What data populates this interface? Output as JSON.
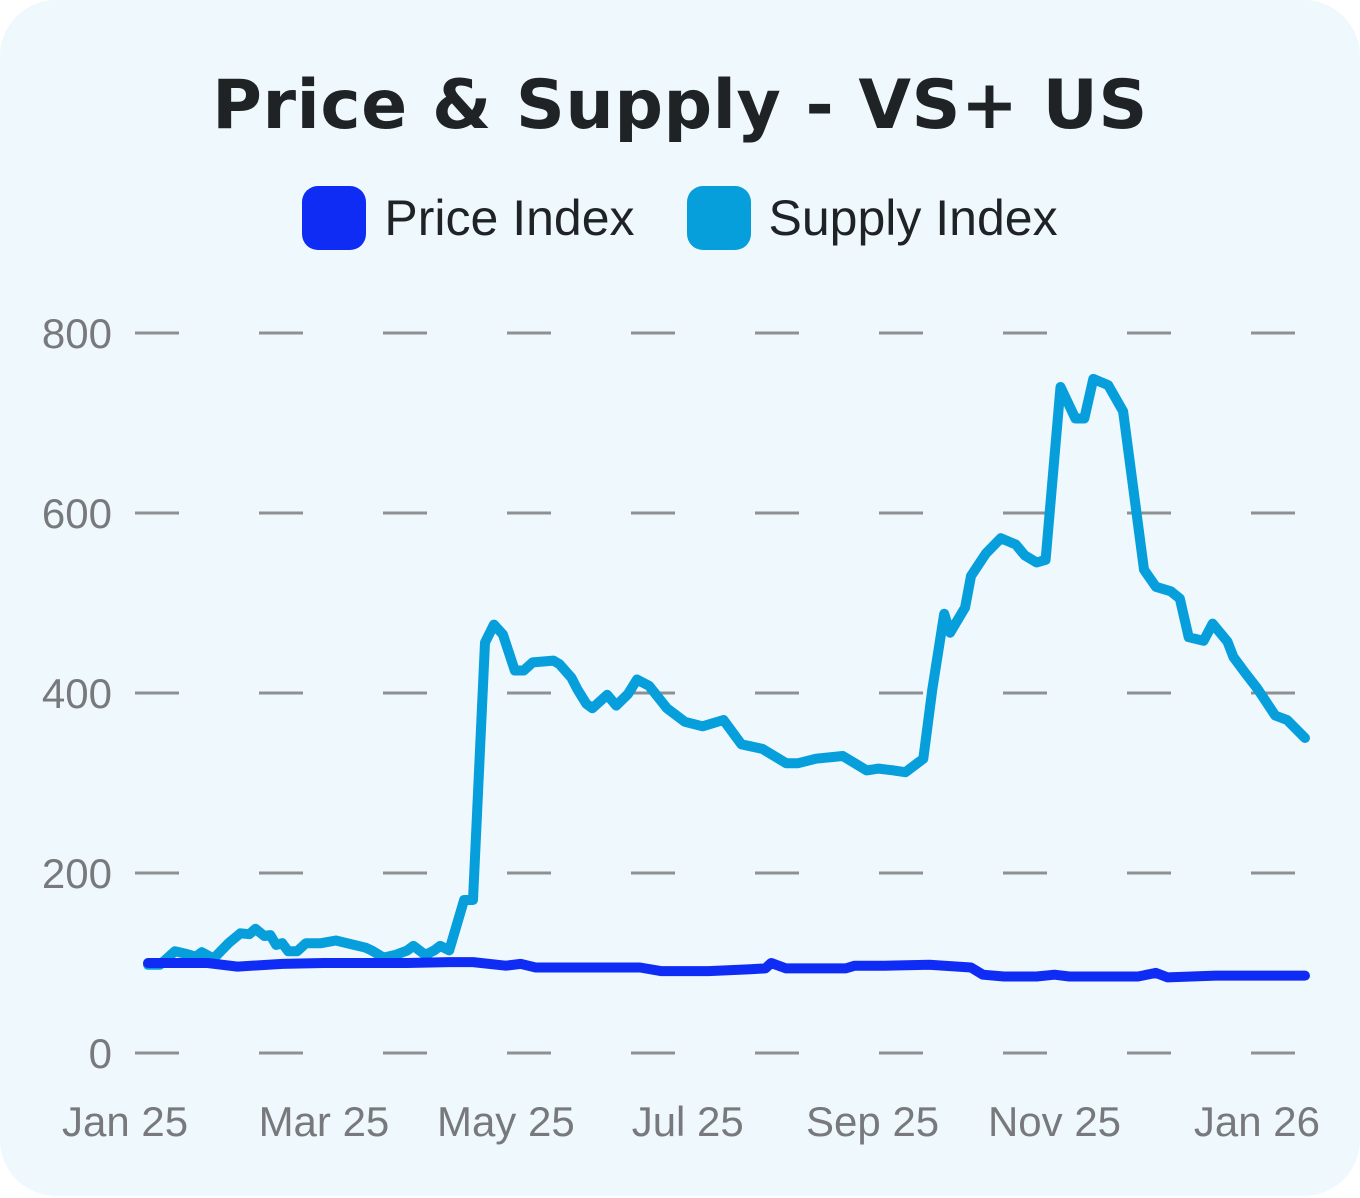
{
  "chart_data": {
    "type": "line",
    "title": "Price & Supply - VS+ US",
    "xlabel": "",
    "ylabel": "",
    "ylim": [
      0,
      800
    ],
    "yticks": [
      0,
      200,
      400,
      600,
      800
    ],
    "xlim": [
      "2025-01-01",
      "2026-01-24"
    ],
    "xticks": [
      {
        "date": "2025-01-01",
        "label": "Jan 25"
      },
      {
        "date": "2025-03-01",
        "label": "Mar 25"
      },
      {
        "date": "2025-05-01",
        "label": "May 25"
      },
      {
        "date": "2025-07-01",
        "label": "Jul 25"
      },
      {
        "date": "2025-09-01",
        "label": "Sep 25"
      },
      {
        "date": "2025-11-01",
        "label": "Nov 25"
      },
      {
        "date": "2026-01-01",
        "label": "Jan 26"
      }
    ],
    "grid": true,
    "legend_position": "top",
    "series": [
      {
        "name": "Price Index",
        "color": "#0f2cf5",
        "points": [
          [
            "2025-01-01",
            100
          ],
          [
            "2025-01-11",
            100
          ],
          [
            "2025-01-21",
            100
          ],
          [
            "2025-01-31",
            96
          ],
          [
            "2025-02-15",
            99
          ],
          [
            "2025-03-01",
            100
          ],
          [
            "2025-03-15",
            100
          ],
          [
            "2025-03-29",
            100
          ],
          [
            "2025-04-12",
            101
          ],
          [
            "2025-04-20",
            101
          ],
          [
            "2025-05-01",
            97
          ],
          [
            "2025-05-06",
            99
          ],
          [
            "2025-05-11",
            95
          ],
          [
            "2025-05-31",
            95
          ],
          [
            "2025-06-15",
            95
          ],
          [
            "2025-06-22",
            91
          ],
          [
            "2025-07-08",
            91
          ],
          [
            "2025-07-22",
            93
          ],
          [
            "2025-07-27",
            94
          ],
          [
            "2025-07-29",
            100
          ],
          [
            "2025-08-03",
            94
          ],
          [
            "2025-08-14",
            94
          ],
          [
            "2025-08-23",
            94
          ],
          [
            "2025-08-26",
            97
          ],
          [
            "2025-09-05",
            97
          ],
          [
            "2025-09-20",
            98
          ],
          [
            "2025-10-04",
            95
          ],
          [
            "2025-10-08",
            87
          ],
          [
            "2025-10-15",
            85
          ],
          [
            "2025-10-26",
            85
          ],
          [
            "2025-11-01",
            87
          ],
          [
            "2025-11-06",
            85
          ],
          [
            "2025-11-29",
            85
          ],
          [
            "2025-12-05",
            89
          ],
          [
            "2025-12-09",
            84
          ],
          [
            "2025-12-25",
            86
          ],
          [
            "2026-01-24",
            86
          ]
        ]
      },
      {
        "name": "Supply Index",
        "color": "#069fdc",
        "points": [
          [
            "2025-01-01",
            98
          ],
          [
            "2025-01-05",
            98
          ],
          [
            "2025-01-10",
            113
          ],
          [
            "2025-01-14",
            110
          ],
          [
            "2025-01-17",
            107
          ],
          [
            "2025-01-19",
            112
          ],
          [
            "2025-01-23",
            105
          ],
          [
            "2025-01-28",
            122
          ],
          [
            "2025-02-01",
            133
          ],
          [
            "2025-02-04",
            132
          ],
          [
            "2025-02-06",
            138
          ],
          [
            "2025-02-09",
            130
          ],
          [
            "2025-02-11",
            131
          ],
          [
            "2025-02-13",
            120
          ],
          [
            "2025-02-15",
            122
          ],
          [
            "2025-02-17",
            113
          ],
          [
            "2025-02-20",
            113
          ],
          [
            "2025-02-23",
            122
          ],
          [
            "2025-02-28",
            122
          ],
          [
            "2025-03-05",
            125
          ],
          [
            "2025-03-10",
            121
          ],
          [
            "2025-03-15",
            117
          ],
          [
            "2025-03-17",
            114
          ],
          [
            "2025-03-21",
            106
          ],
          [
            "2025-03-25",
            109
          ],
          [
            "2025-03-29",
            114
          ],
          [
            "2025-03-31",
            119
          ],
          [
            "2025-04-04",
            109
          ],
          [
            "2025-04-07",
            114
          ],
          [
            "2025-04-09",
            119
          ],
          [
            "2025-04-12",
            114
          ],
          [
            "2025-04-17",
            170
          ],
          [
            "2025-04-20",
            170
          ],
          [
            "2025-04-24",
            456
          ],
          [
            "2025-04-27",
            476
          ],
          [
            "2025-04-30",
            465
          ],
          [
            "2025-05-04",
            425
          ],
          [
            "2025-05-07",
            425
          ],
          [
            "2025-05-10",
            434
          ],
          [
            "2025-05-17",
            436
          ],
          [
            "2025-05-19",
            432
          ],
          [
            "2025-05-23",
            417
          ],
          [
            "2025-05-25",
            404
          ],
          [
            "2025-05-28",
            388
          ],
          [
            "2025-05-30",
            383
          ],
          [
            "2025-06-04",
            398
          ],
          [
            "2025-06-07",
            386
          ],
          [
            "2025-06-11",
            399
          ],
          [
            "2025-06-14",
            415
          ],
          [
            "2025-06-18",
            408
          ],
          [
            "2025-06-24",
            383
          ],
          [
            "2025-06-30",
            368
          ],
          [
            "2025-07-06",
            363
          ],
          [
            "2025-07-13",
            370
          ],
          [
            "2025-07-19",
            343
          ],
          [
            "2025-07-26",
            338
          ],
          [
            "2025-08-03",
            322
          ],
          [
            "2025-08-07",
            322
          ],
          [
            "2025-08-13",
            327
          ],
          [
            "2025-08-22",
            330
          ],
          [
            "2025-08-26",
            322
          ],
          [
            "2025-08-30",
            314
          ],
          [
            "2025-09-03",
            316
          ],
          [
            "2025-09-08",
            314
          ],
          [
            "2025-09-12",
            312
          ],
          [
            "2025-09-18",
            327
          ],
          [
            "2025-09-21",
            404
          ],
          [
            "2025-09-25",
            488
          ],
          [
            "2025-09-27",
            467
          ],
          [
            "2025-10-02",
            495
          ],
          [
            "2025-10-04",
            530
          ],
          [
            "2025-10-09",
            555
          ],
          [
            "2025-10-14",
            572
          ],
          [
            "2025-10-19",
            565
          ],
          [
            "2025-10-22",
            553
          ],
          [
            "2025-10-26",
            545
          ],
          [
            "2025-10-29",
            548
          ],
          [
            "2025-11-03",
            740
          ],
          [
            "2025-11-08",
            705
          ],
          [
            "2025-11-11",
            705
          ],
          [
            "2025-11-14",
            749
          ],
          [
            "2025-11-19",
            742
          ],
          [
            "2025-11-24",
            713
          ],
          [
            "2025-12-01",
            537
          ],
          [
            "2025-12-05",
            518
          ],
          [
            "2025-12-10",
            513
          ],
          [
            "2025-12-13",
            505
          ],
          [
            "2025-12-16",
            462
          ],
          [
            "2025-12-21",
            458
          ],
          [
            "2025-12-24",
            477
          ],
          [
            "2025-12-29",
            457
          ],
          [
            "2025-12-31",
            440
          ],
          [
            "2026-01-04",
            422
          ],
          [
            "2026-01-08",
            405
          ],
          [
            "2026-01-14",
            375
          ],
          [
            "2026-01-18",
            370
          ],
          [
            "2026-01-24",
            350
          ]
        ]
      }
    ]
  }
}
